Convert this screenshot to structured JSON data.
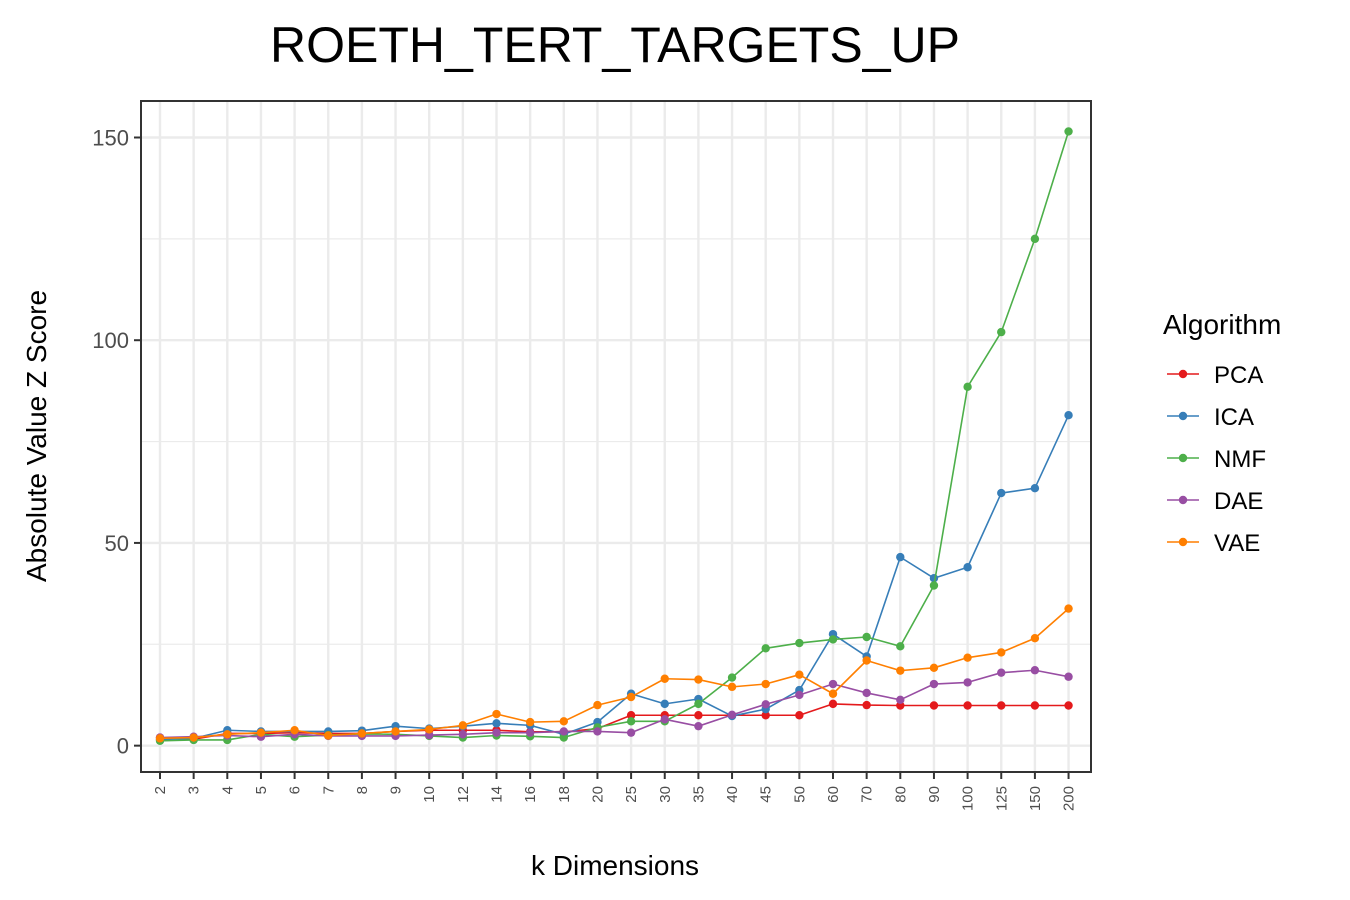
{
  "chart_data": {
    "type": "line",
    "title": "ROETH_TERT_TARGETS_UP",
    "xlabel": "k Dimensions",
    "ylabel": "Absolute Value Z Score",
    "ylim": [
      -6.5,
      159
    ],
    "yticks": [
      0,
      50,
      100,
      150
    ],
    "grid": true,
    "legend": {
      "title": "Algorithm",
      "position": "right"
    },
    "categories": [
      "2",
      "3",
      "4",
      "5",
      "6",
      "7",
      "8",
      "9",
      "10",
      "12",
      "14",
      "16",
      "18",
      "20",
      "25",
      "30",
      "35",
      "40",
      "45",
      "50",
      "60",
      "70",
      "80",
      "90",
      "100",
      "125",
      "150",
      "200"
    ],
    "series": [
      {
        "name": "PCA",
        "color": "#e41a1c",
        "values": [
          2.0,
          1.6,
          3.0,
          3.0,
          3.2,
          3.0,
          3.0,
          3.5,
          3.8,
          3.8,
          3.8,
          3.4,
          3.4,
          4.2,
          7.5,
          7.5,
          7.5,
          7.5,
          7.5,
          7.5,
          10.3,
          10.0,
          9.9,
          9.9,
          9.9,
          9.9,
          9.9,
          9.9
        ]
      },
      {
        "name": "ICA",
        "color": "#377eb8",
        "values": [
          1.5,
          1.8,
          3.8,
          3.5,
          3.5,
          3.5,
          3.7,
          4.8,
          4.2,
          4.8,
          5.5,
          5.0,
          2.8,
          5.8,
          12.8,
          10.3,
          11.5,
          7.3,
          9.0,
          13.7,
          27.5,
          22.0,
          46.5,
          41.3,
          44.0,
          62.3,
          63.5,
          81.5
        ]
      },
      {
        "name": "NMF",
        "color": "#4daf4a",
        "values": [
          1.2,
          1.4,
          1.4,
          2.8,
          2.2,
          2.6,
          2.9,
          2.8,
          2.4,
          2.0,
          2.5,
          2.3,
          2.0,
          4.5,
          6.0,
          6.0,
          10.3,
          16.8,
          24.0,
          25.3,
          26.2,
          26.8,
          24.5,
          39.5,
          88.5,
          102.0,
          125.0,
          151.5
        ]
      },
      {
        "name": "DAE",
        "color": "#984ea3",
        "values": [
          2.0,
          2.2,
          2.5,
          2.2,
          2.8,
          2.4,
          2.4,
          2.4,
          2.6,
          2.8,
          3.2,
          3.2,
          3.5,
          3.5,
          3.2,
          6.5,
          4.8,
          7.6,
          10.2,
          12.5,
          15.2,
          13.0,
          11.3,
          15.2,
          15.6,
          18.0,
          18.6,
          17.0
        ]
      },
      {
        "name": "VAE",
        "color": "#ff7f00",
        "values": [
          1.8,
          2.0,
          2.8,
          3.2,
          3.8,
          2.5,
          3.0,
          3.5,
          4.0,
          5.0,
          7.8,
          5.8,
          6.0,
          10.0,
          12.0,
          16.5,
          16.3,
          14.5,
          15.2,
          17.5,
          12.8,
          21.0,
          18.5,
          19.2,
          21.7,
          23.0,
          26.5,
          33.8
        ]
      }
    ]
  }
}
